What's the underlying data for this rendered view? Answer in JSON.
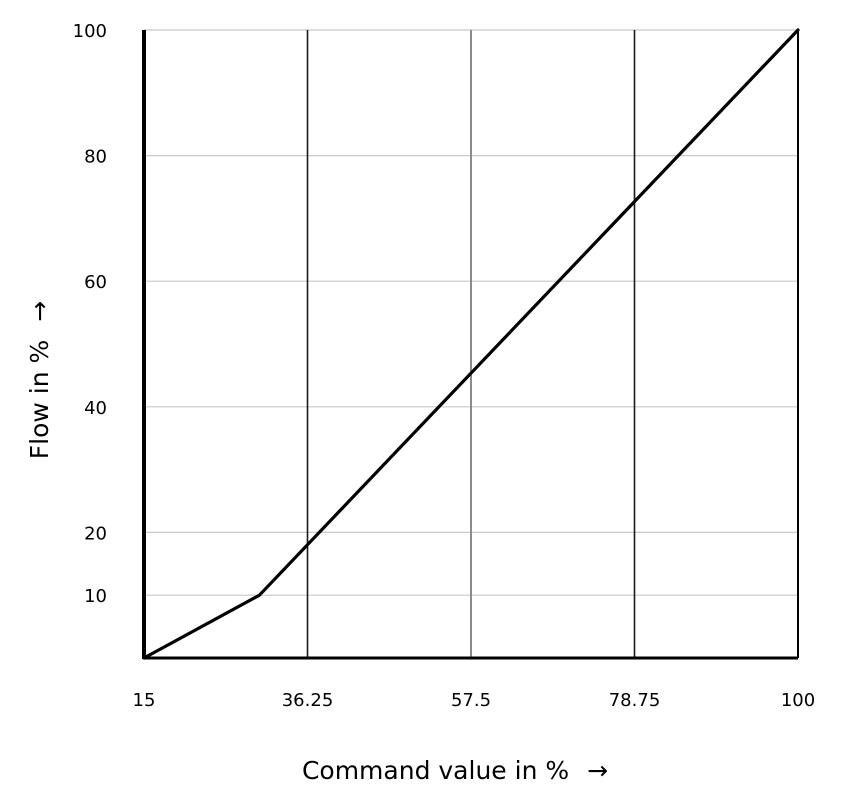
{
  "chart_data": {
    "type": "line",
    "xlabel": "Command value in %",
    "ylabel": "Flow in %",
    "x_ticks": [
      "15",
      "36.25",
      "57.5",
      "78.75",
      "100"
    ],
    "y_ticks": [
      "10",
      "20",
      "40",
      "60",
      "80",
      "100"
    ],
    "xlim": [
      15,
      100
    ],
    "ylim": [
      0,
      100
    ],
    "grid": true,
    "series": [
      {
        "x": [
          15,
          30,
          100
        ],
        "y": [
          0,
          10,
          100
        ]
      }
    ],
    "arrow_glyph": "→",
    "colors": {
      "line": "#000000",
      "axis": "#000000",
      "major_grid": "#1a1a1a",
      "mid_grid": "#8c8c8c",
      "minor_grid": "#c8c8c8"
    }
  }
}
